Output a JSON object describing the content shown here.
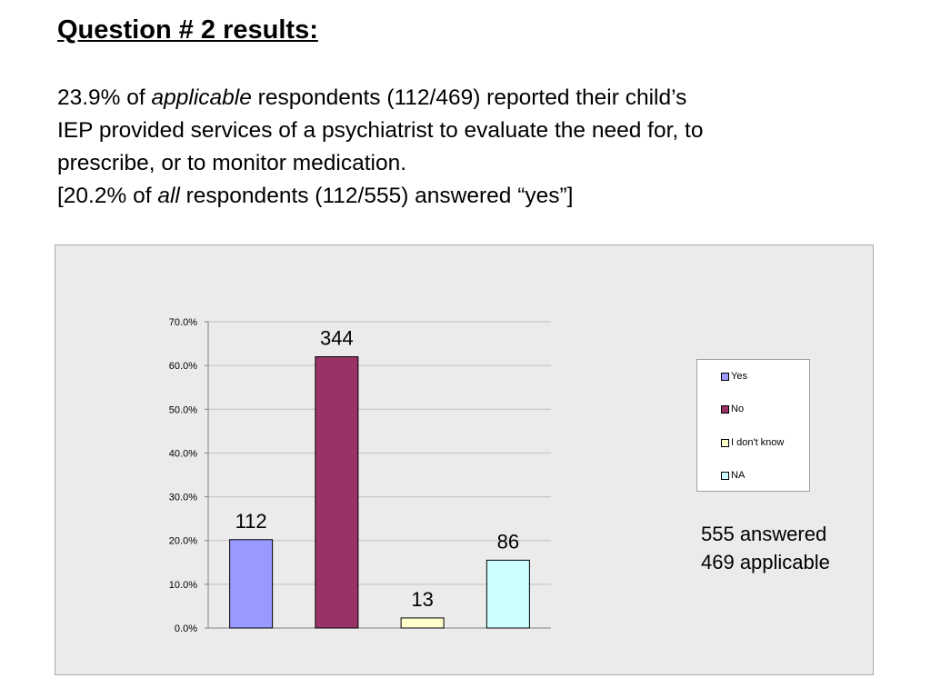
{
  "title": "Question # 2 results:",
  "body": {
    "line1_pre": "23.9% of ",
    "line1_em": "applicable",
    "line1_post": " respondents (112/469) reported their child’s",
    "line2": "IEP provided services of a psychiatrist to evaluate the need for, to",
    "line3": "prescribe, or to monitor medication.",
    "line4_pre": "[20.2% of ",
    "line4_em": "all",
    "line4_post": " respondents (112/555) answered “yes”]"
  },
  "summary": {
    "answered": "555 answered",
    "applicable": "469 applicable"
  },
  "chart_data": {
    "type": "bar",
    "title": "",
    "xlabel": "",
    "ylabel": "",
    "ylim": [
      0,
      70
    ],
    "yticks": [
      "0.0%",
      "10.0%",
      "20.0%",
      "30.0%",
      "40.0%",
      "50.0%",
      "60.0%",
      "70.0%"
    ],
    "grid": true,
    "legend_position": "right",
    "categories": [
      "Yes",
      "No",
      "I don't know",
      "NA"
    ],
    "values": [
      20.2,
      62.0,
      2.3,
      15.5
    ],
    "data_labels": [
      "112",
      "344",
      "13",
      "86"
    ],
    "colors": [
      "#9999ff",
      "#993366",
      "#ffffcc",
      "#ccffff"
    ]
  }
}
